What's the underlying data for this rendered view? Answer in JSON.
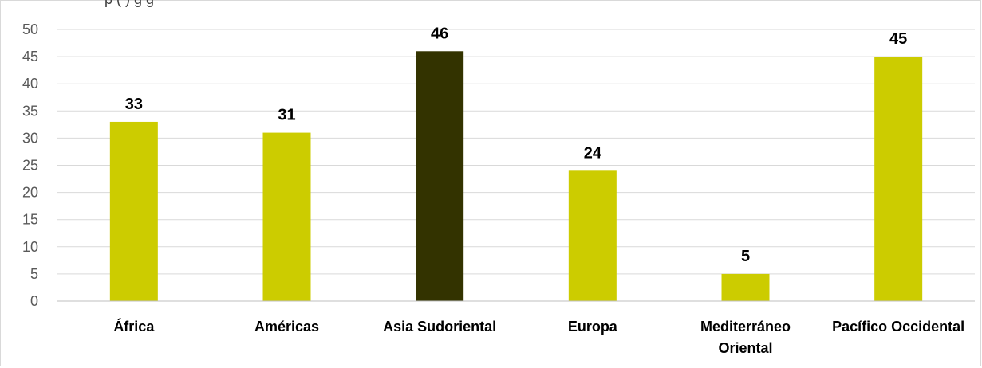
{
  "chart_data": {
    "type": "bar",
    "title_partial": "p                                                             (         )           g          g",
    "categories": [
      "África",
      "Américas",
      "Asia Sudoriental",
      "Europa",
      "Mediterráneo Oriental",
      "Pacífico Occidental"
    ],
    "category_lines": [
      [
        "África"
      ],
      [
        "Américas"
      ],
      [
        "Asia Sudoriental"
      ],
      [
        "Europa"
      ],
      [
        "Mediterráneo",
        "Oriental"
      ],
      [
        "Pacífico Occidental"
      ]
    ],
    "values": [
      33,
      31,
      46,
      24,
      5,
      45
    ],
    "data_labels": [
      "33",
      "31",
      "46",
      "24",
      "5",
      "45"
    ],
    "bar_colors": [
      "#cccc00",
      "#cccc00",
      "#333300",
      "#cccc00",
      "#cccc00",
      "#cccc00"
    ],
    "ylim": [
      0,
      50
    ],
    "yticks": [
      0,
      5,
      10,
      15,
      20,
      25,
      30,
      35,
      40,
      45,
      50
    ],
    "grid": true,
    "legend": "none"
  }
}
